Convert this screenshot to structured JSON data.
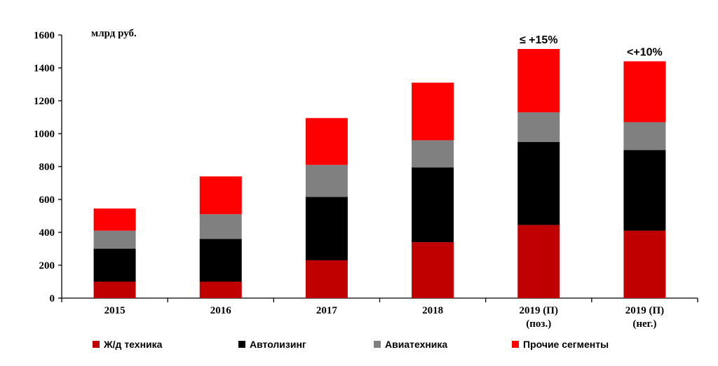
{
  "chart_data": {
    "type": "bar",
    "stacked": true,
    "unit_label": "млрд руб.",
    "ylim": [
      0,
      1600
    ],
    "yticks": [
      0,
      200,
      400,
      600,
      800,
      1000,
      1200,
      1400,
      1600
    ],
    "grid": false,
    "legend_position": "bottom",
    "categories": [
      [
        "2015"
      ],
      [
        "2016"
      ],
      [
        "2017"
      ],
      [
        "2018"
      ],
      [
        "2019 (П)",
        "(поз.)"
      ],
      [
        "2019 (П)",
        "(нег.)"
      ]
    ],
    "series": [
      {
        "name": "Ж/д техника",
        "color": "#c00000",
        "values": [
          100,
          100,
          230,
          340,
          445,
          410
        ]
      },
      {
        "name": "Автолизинг",
        "color": "#000000",
        "values": [
          200,
          260,
          385,
          455,
          505,
          490
        ]
      },
      {
        "name": "Авиатехника",
        "color": "#808080",
        "values": [
          110,
          150,
          195,
          165,
          180,
          170
        ]
      },
      {
        "name": "Прочие сегменты",
        "color": "#ff0000",
        "values": [
          135,
          230,
          285,
          350,
          385,
          370
        ]
      }
    ],
    "annotations": [
      {
        "category_index": 4,
        "text": "≤ +15%"
      },
      {
        "category_index": 5,
        "text": "<+10%"
      }
    ]
  }
}
